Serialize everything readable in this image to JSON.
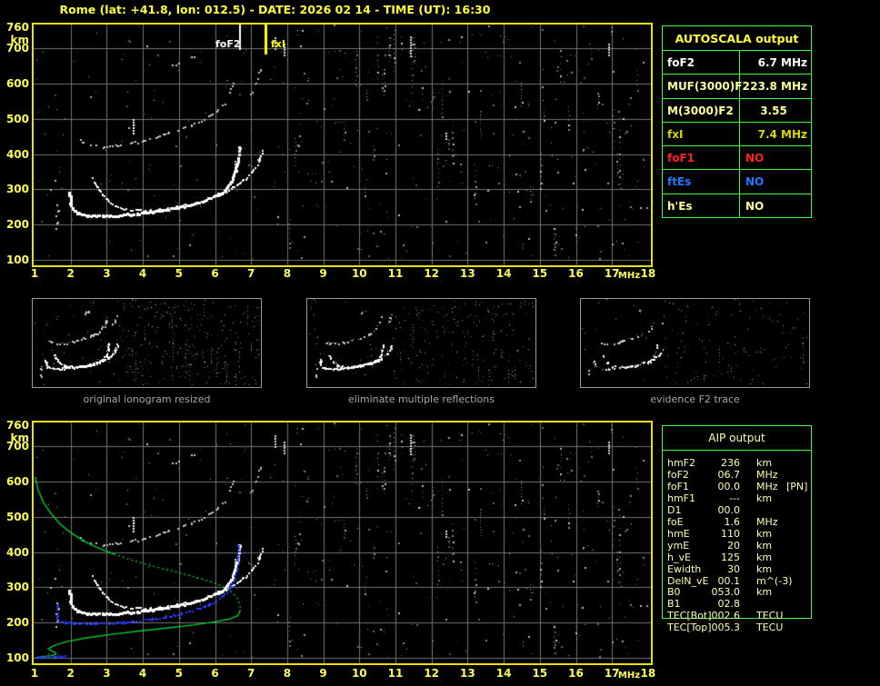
{
  "title": "Rome (lat: +41.8, lon: 012.5) - DATE: 2026 02 14 - TIME (UT): 16:30",
  "colors": {
    "background": "#000000",
    "title_yellow": "#ffff33",
    "axis_yellow": "#ffff55",
    "plot_border": "#e8e200",
    "grid_gray": "#757575",
    "table_border_green": "#3dff3d",
    "aip_text": "#ffffaa",
    "profile_green": "#00cc33",
    "restored_blue": "#2b3cff",
    "caption_gray": "#a8a8a8"
  },
  "chart_data": [
    {
      "id": "ionogram-top",
      "type": "scatter",
      "title": "",
      "xlabel": "MHz",
      "ylabel": "km",
      "xlim": [
        1,
        18
      ],
      "ylim": [
        100,
        760
      ],
      "grid": true,
      "x_ticks": [
        1,
        2,
        3,
        4,
        5,
        6,
        7,
        8,
        9,
        10,
        11,
        12,
        13,
        14,
        15,
        16,
        17,
        18
      ],
      "x_unit": "MHz",
      "y_ticks": [
        760,
        700,
        600,
        500,
        400,
        300,
        200,
        100
      ],
      "y_unit": "km",
      "markers": [
        {
          "label": "foF2",
          "x": 6.7,
          "color": "#ffffff",
          "width": 2,
          "len": 28
        },
        {
          "label": "fxI",
          "x": 7.4,
          "color": "#ffff00",
          "width": 3,
          "len": 33
        }
      ],
      "series": [
        {
          "name": "F2-trace-o-mode",
          "color": "#ffffff",
          "size": 3,
          "density": 0.95,
          "points": [
            [
              1.95,
              290
            ],
            [
              1.98,
              268
            ],
            [
              2.02,
              250
            ],
            [
              2.1,
              238
            ],
            [
              2.25,
              231
            ],
            [
              2.5,
              227
            ],
            [
              2.9,
              226
            ],
            [
              3.3,
              228
            ],
            [
              3.7,
              231
            ],
            [
              4.1,
              235
            ],
            [
              4.5,
              241
            ],
            [
              4.9,
              248
            ],
            [
              5.3,
              257
            ],
            [
              5.6,
              266
            ],
            [
              5.9,
              278
            ],
            [
              6.15,
              291
            ],
            [
              6.3,
              305
            ],
            [
              6.45,
              325
            ],
            [
              6.55,
              350
            ],
            [
              6.62,
              380
            ],
            [
              6.66,
              408
            ],
            [
              6.68,
              427
            ]
          ]
        },
        {
          "name": "F2-trace-x-mode",
          "color": "#ffffff",
          "size": 2,
          "density": 0.8,
          "points": [
            [
              2.6,
              332
            ],
            [
              2.75,
              305
            ],
            [
              2.9,
              283
            ],
            [
              3.1,
              262
            ],
            [
              3.35,
              248
            ],
            [
              3.7,
              241
            ],
            [
              4.1,
              240
            ],
            [
              4.5,
              243
            ],
            [
              4.9,
              249
            ],
            [
              5.3,
              257
            ],
            [
              5.7,
              268
            ],
            [
              6.0,
              279
            ],
            [
              6.3,
              293
            ],
            [
              6.6,
              312
            ],
            [
              6.85,
              330
            ],
            [
              7.05,
              352
            ],
            [
              7.2,
              378
            ],
            [
              7.3,
              405
            ],
            [
              7.34,
              422
            ]
          ]
        },
        {
          "name": "second-hop-trace",
          "color": "#c8c8c8",
          "size": 2,
          "density": 0.5,
          "points": [
            [
              2.15,
              448
            ],
            [
              2.35,
              432
            ],
            [
              2.6,
              424
            ],
            [
              3.0,
              421
            ],
            [
              3.4,
              425
            ],
            [
              3.8,
              433
            ],
            [
              4.2,
              443
            ],
            [
              4.6,
              455
            ],
            [
              5.0,
              468
            ],
            [
              5.4,
              484
            ],
            [
              5.75,
              500
            ],
            [
              6.05,
              520
            ],
            [
              6.25,
              543
            ],
            [
              6.4,
              570
            ],
            [
              6.5,
              600
            ],
            [
              6.57,
              632
            ]
          ]
        },
        {
          "name": "second-hop-x-fragment",
          "color": "#bbbbbb",
          "size": 2,
          "density": 0.4,
          "points": [
            [
              6.9,
              555
            ],
            [
              7.05,
              580
            ],
            [
              7.18,
              612
            ],
            [
              7.28,
              645
            ]
          ]
        },
        {
          "name": "third-hop-fragment",
          "color": "#cccccc",
          "size": 2,
          "density": 0.45,
          "points": [
            [
              4.75,
              648
            ],
            [
              5.0,
              658
            ],
            [
              5.25,
              668
            ],
            [
              5.45,
              678
            ]
          ]
        },
        {
          "name": "EF-cusp-scatter",
          "color": "#cccccc",
          "size": 2,
          "density": 0.3,
          "points": [
            [
              1.62,
              165
            ],
            [
              1.58,
              185
            ],
            [
              1.64,
              205
            ],
            [
              1.6,
              225
            ],
            [
              1.66,
              245
            ],
            [
              1.62,
              262
            ]
          ]
        }
      ]
    },
    {
      "id": "ionogram-bottom",
      "type": "scatter",
      "title": "",
      "xlabel": "MHz",
      "ylabel": "km",
      "xlim": [
        1,
        18
      ],
      "ylim": [
        100,
        760
      ],
      "grid": true,
      "x_ticks": [
        1,
        2,
        3,
        4,
        5,
        6,
        7,
        8,
        9,
        10,
        11,
        12,
        13,
        14,
        15,
        16,
        17,
        18
      ],
      "x_unit": "MHz",
      "y_ticks": [
        760,
        700,
        600,
        500,
        400,
        300,
        200,
        100
      ],
      "y_unit": "km",
      "markers": [],
      "series": [
        {
          "name": "profile-topside",
          "color": "#00cc33",
          "type": "line",
          "dash": false,
          "points": [
            [
              1.02,
              612
            ],
            [
              1.1,
              575
            ],
            [
              1.25,
              540
            ],
            [
              1.45,
              510
            ],
            [
              1.7,
              480
            ],
            [
              2.0,
              455
            ],
            [
              2.35,
              432
            ],
            [
              2.75,
              412
            ],
            [
              3.2,
              394
            ]
          ]
        },
        {
          "name": "profile-topside-lower",
          "color": "#00cc33",
          "type": "line",
          "dash": true,
          "points": [
            [
              3.2,
              394
            ],
            [
              3.7,
              377
            ],
            [
              4.2,
              362
            ],
            [
              4.7,
              349
            ],
            [
              5.2,
              336
            ],
            [
              5.7,
              322
            ],
            [
              6.1,
              308
            ],
            [
              6.4,
              292
            ],
            [
              6.6,
              272
            ],
            [
              6.69,
              252
            ],
            [
              6.7,
              236
            ]
          ]
        },
        {
          "name": "profile-bottomside",
          "color": "#00cc33",
          "type": "line",
          "dash": false,
          "points": [
            [
              6.7,
              236
            ],
            [
              6.64,
              220
            ],
            [
              6.4,
              210
            ],
            [
              6.0,
              202
            ],
            [
              5.4,
              193
            ],
            [
              4.7,
              185
            ],
            [
              3.9,
              176
            ],
            [
              3.1,
              166
            ],
            [
              2.4,
              156
            ],
            [
              1.9,
              146
            ],
            [
              1.6,
              137
            ],
            [
              1.45,
              130
            ],
            [
              1.38,
              125
            ],
            [
              1.46,
              120
            ],
            [
              1.58,
              115
            ],
            [
              1.6,
              110
            ],
            [
              1.45,
              106
            ],
            [
              1.2,
              103
            ],
            [
              1.03,
              101
            ]
          ]
        },
        {
          "name": "restored-trace",
          "color": "#2b3cff",
          "size": 2,
          "density": 0.9,
          "type": "plusdots",
          "segments": [
            [
              [
                1.0,
                103
              ],
              [
                1.3,
                103
              ],
              [
                1.6,
                103
              ],
              [
                1.9,
                104
              ]
            ],
            [
              [
                1.63,
                205
              ],
              [
                1.63,
                225
              ],
              [
                1.63,
                243
              ],
              [
                1.64,
                257
              ]
            ],
            [
              [
                1.7,
                203
              ],
              [
                1.9,
                200
              ],
              [
                2.2,
                198
              ],
              [
                2.6,
                197
              ],
              [
                3.0,
                198
              ],
              [
                3.4,
                200
              ],
              [
                3.8,
                204
              ],
              [
                4.2,
                209
              ],
              [
                4.6,
                215
              ],
              [
                5.0,
                223
              ],
              [
                5.4,
                234
              ],
              [
                5.75,
                247
              ],
              [
                6.0,
                260
              ],
              [
                6.2,
                275
              ],
              [
                6.38,
                293
              ],
              [
                6.5,
                315
              ],
              [
                6.58,
                342
              ],
              [
                6.63,
                375
              ],
              [
                6.65,
                405
              ],
              [
                6.66,
                425
              ]
            ]
          ]
        }
      ]
    }
  ],
  "autoscala": {
    "title": "AUTOSCALA output",
    "rows": [
      {
        "label": "foF2",
        "value": "6.7 MHz",
        "color": "#ffffff",
        "align": "right"
      },
      {
        "label": "MUF(3000)F2",
        "value": "23.8 MHz",
        "color": "#ffff99",
        "align": "right"
      },
      {
        "label": "M(3000)F2",
        "value": "3.55",
        "color": "#ffff99",
        "align": "center"
      },
      {
        "label": "fxI",
        "value": "7.4 MHz",
        "color": "#d8d800",
        "align": "right"
      },
      {
        "label": "foF1",
        "value": "NO",
        "color": "#ff2020",
        "align": "left"
      },
      {
        "label": "ftEs",
        "value": "NO",
        "color": "#2277ff",
        "align": "left"
      },
      {
        "label": "h'Es",
        "value": "NO",
        "color": "#ffff99",
        "align": "left"
      }
    ]
  },
  "thumbnails": {
    "captions": [
      "original ionogram resized",
      "eliminate multiple reflections",
      "evidence F2 trace"
    ]
  },
  "aip": {
    "title": "AIP output",
    "rows": [
      {
        "label": "hmF2",
        "value": "236",
        "unit": "km",
        "extra": ""
      },
      {
        "label": "foF2",
        "value": "06.7",
        "unit": "MHz",
        "extra": ""
      },
      {
        "label": "foF1",
        "value": "00.0",
        "unit": "MHz",
        "extra": "[PN]"
      },
      {
        "label": "hmF1",
        "value": "---",
        "unit": "km",
        "extra": ""
      },
      {
        "label": "D1",
        "value": "00.0",
        "unit": "",
        "extra": ""
      },
      {
        "label": "foE",
        "value": "1.6",
        "unit": "MHz",
        "extra": ""
      },
      {
        "label": "hmE",
        "value": "110",
        "unit": "km",
        "extra": ""
      },
      {
        "label": "ymE",
        "value": "20",
        "unit": "km",
        "extra": ""
      },
      {
        "label": "h_vE",
        "value": "125",
        "unit": "km",
        "extra": ""
      },
      {
        "label": "Ewidth",
        "value": "30",
        "unit": "km",
        "extra": ""
      },
      {
        "label": "DelN_vE",
        "value": "00.1",
        "unit": "m^(-3)",
        "extra": ""
      },
      {
        "label": "B0",
        "value": "053.0",
        "unit": "km",
        "extra": ""
      },
      {
        "label": "B1",
        "value": "02.8",
        "unit": "",
        "extra": ""
      },
      {
        "label": "TEC[Bot]",
        "value": "002.6",
        "unit": "TECU",
        "extra": ""
      },
      {
        "label": "TEC[Top]",
        "value": "005.3",
        "unit": "TECU",
        "extra": ""
      }
    ]
  }
}
